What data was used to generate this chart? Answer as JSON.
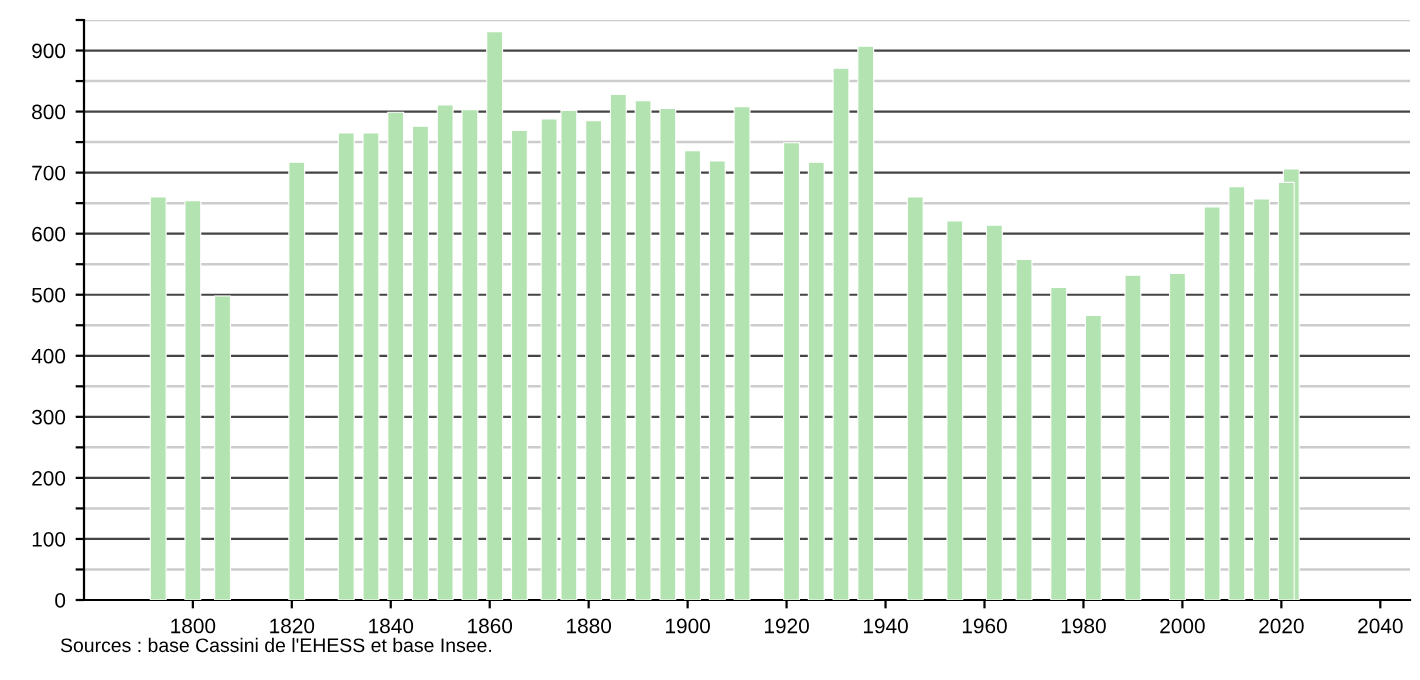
{
  "chart_data": {
    "type": "bar",
    "x": [
      1793,
      1800,
      1806,
      1821,
      1831,
      1836,
      1841,
      1846,
      1851,
      1856,
      1861,
      1866,
      1872,
      1876,
      1881,
      1886,
      1891,
      1896,
      1901,
      1906,
      1911,
      1921,
      1926,
      1931,
      1936,
      1946,
      1954,
      1962,
      1968,
      1975,
      1982,
      1990,
      1999,
      2006,
      2011,
      2016,
      2021,
      2022
    ],
    "values": [
      660,
      654,
      498,
      717,
      765,
      765,
      799,
      776,
      811,
      803,
      931,
      769,
      788,
      802,
      785,
      828,
      818,
      805,
      736,
      719,
      808,
      749,
      717,
      871,
      907,
      660,
      621,
      614,
      558,
      512,
      466,
      532,
      535,
      644,
      677,
      657,
      684,
      706
    ],
    "color": "#b3e3b0",
    "xlim": [
      1778,
      2046
    ],
    "xticks": [
      1800,
      1820,
      1840,
      1860,
      1880,
      1900,
      1920,
      1940,
      1960,
      1980,
      2000,
      2020,
      2040
    ],
    "ylim": [
      0,
      950
    ],
    "yticks": [
      0,
      {
        "value": 50,
        "label": null
      },
      100,
      {
        "value": 150,
        "label": null
      },
      200,
      {
        "value": 250,
        "label": null
      },
      300,
      {
        "value": 350,
        "label": null
      },
      400,
      {
        "value": 450,
        "label": null
      },
      500,
      {
        "value": 550,
        "label": null
      },
      600,
      {
        "value": 650,
        "label": null
      },
      700,
      {
        "value": 750,
        "label": null
      },
      800,
      {
        "value": 850,
        "label": null
      },
      900,
      {
        "value": 950,
        "label": null
      }
    ],
    "grid": "y",
    "annotations": [
      "Sources : base Cassini de l'EHESS et base Insee."
    ]
  }
}
